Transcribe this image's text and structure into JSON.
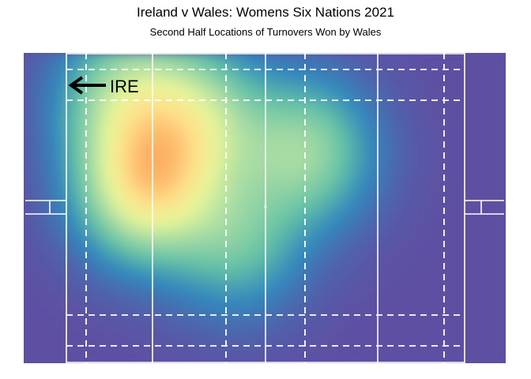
{
  "chart_data": {
    "type": "heatmap",
    "title": "Ireland v Wales: Womens Six Nations 2021",
    "subtitle": "Second Half Locations of Turnovers Won by Wales",
    "annotation": "IRE",
    "annotation_arrow": "left",
    "field_color": "#5E4FA2",
    "palette": [
      "#5E4FA2",
      "#3288BD",
      "#66C2A5",
      "#ABDDA4",
      "#E6F598",
      "#FEE08B",
      "#FDAE61"
    ],
    "line_color": "#ffffff",
    "density_hotspots": [
      {
        "x": 26,
        "y": 42,
        "weight": 1.0
      },
      {
        "x": 22,
        "y": 15,
        "weight": 0.55
      },
      {
        "x": 36,
        "y": 22,
        "weight": 0.55
      },
      {
        "x": 58,
        "y": 32,
        "weight": 0.5
      },
      {
        "x": 44,
        "y": 60,
        "weight": 0.35
      }
    ]
  }
}
